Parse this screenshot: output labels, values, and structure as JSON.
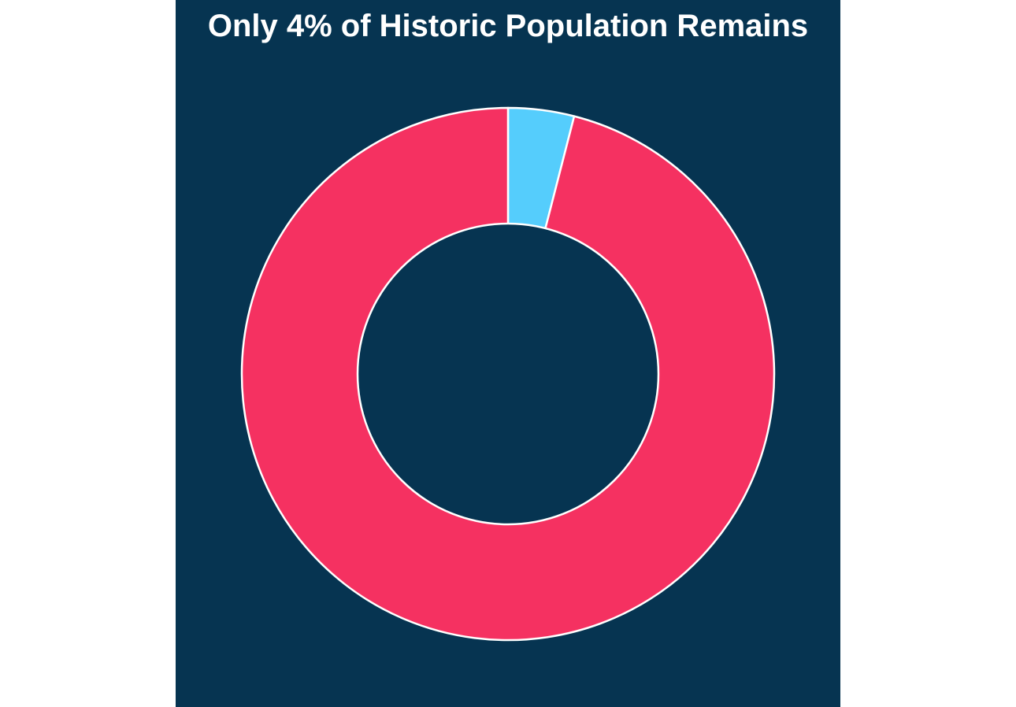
{
  "chart_data": {
    "type": "pie",
    "title": "Only 4% of Historic Population Remains",
    "variant": "donut",
    "slices": [
      {
        "value": 4,
        "color": "#55cdfc"
      },
      {
        "value": 96,
        "color": "#f53161"
      }
    ],
    "start_angle": "top",
    "direction": "clockwise",
    "background_color": "#063451",
    "slice_border_color": "#ffffff",
    "legend": "none",
    "data_labels": "none"
  }
}
